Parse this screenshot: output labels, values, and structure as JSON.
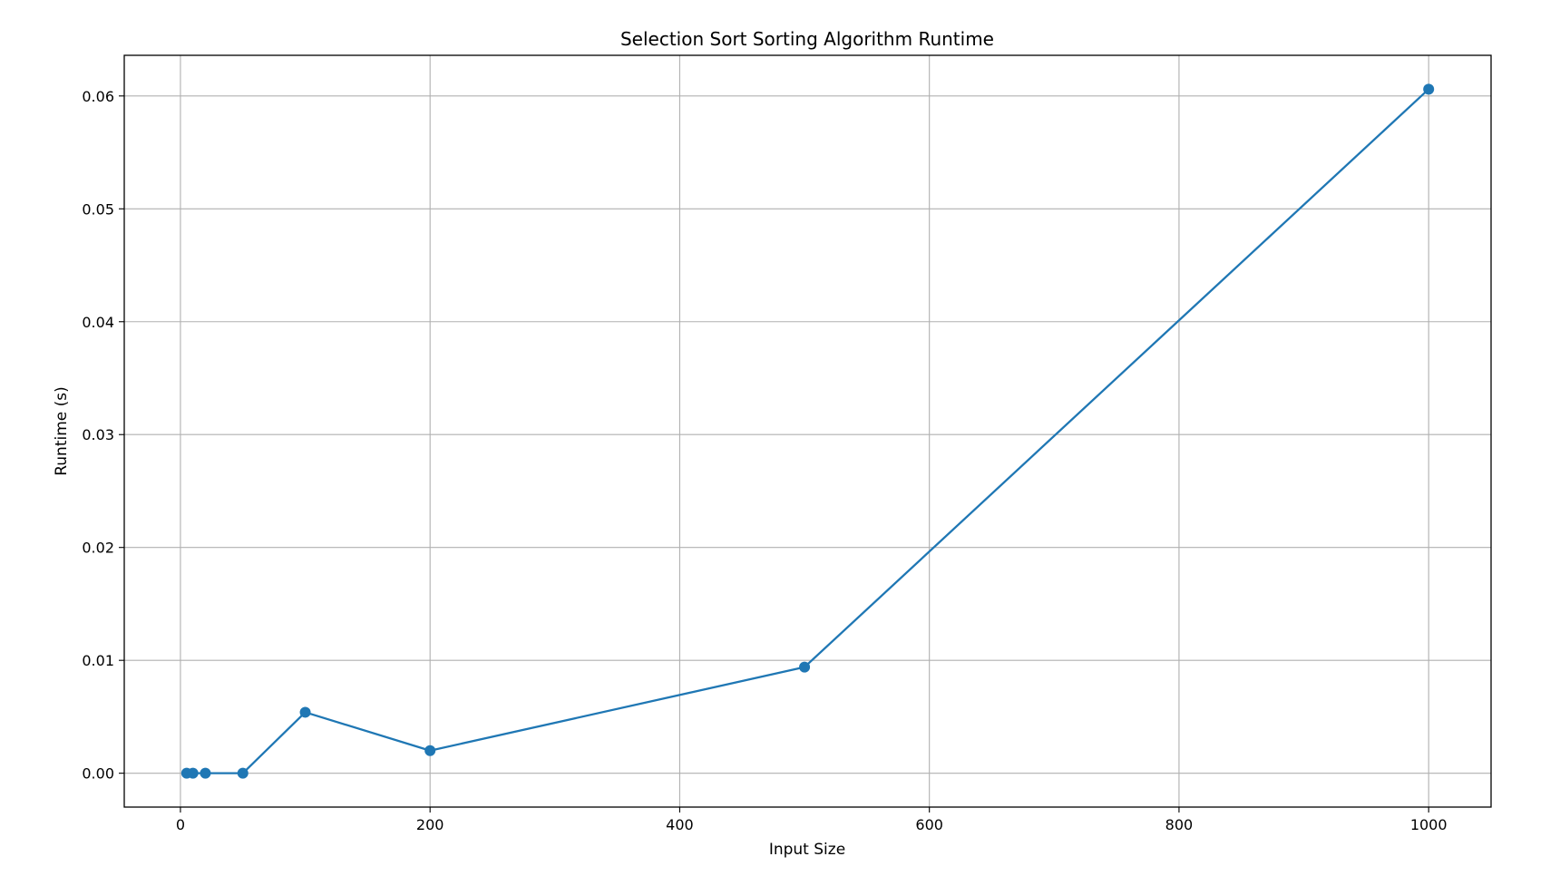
{
  "chart_data": {
    "type": "line",
    "title": "Selection Sort Sorting Algorithm Runtime",
    "xlabel": "Input Size",
    "ylabel": "Runtime (s)",
    "xlim": [
      -45,
      1050
    ],
    "ylim": [
      -0.003,
      0.0636
    ],
    "x_ticks": [
      0,
      200,
      400,
      600,
      800,
      1000
    ],
    "x_tick_labels": [
      "0",
      "200",
      "400",
      "600",
      "800",
      "1000"
    ],
    "y_ticks": [
      0.0,
      0.01,
      0.02,
      0.03,
      0.04,
      0.05,
      0.06
    ],
    "y_tick_labels": [
      "0.00",
      "0.01",
      "0.02",
      "0.03",
      "0.04",
      "0.05",
      "0.06"
    ],
    "grid": true,
    "series": [
      {
        "color": "#1f77b4",
        "marker": "circle",
        "x": [
          5,
          10,
          20,
          50,
          100,
          200,
          500,
          1000
        ],
        "y": [
          0.0,
          0.0,
          0.0,
          0.0,
          0.0054,
          0.002,
          0.0094,
          0.0606
        ]
      }
    ]
  }
}
